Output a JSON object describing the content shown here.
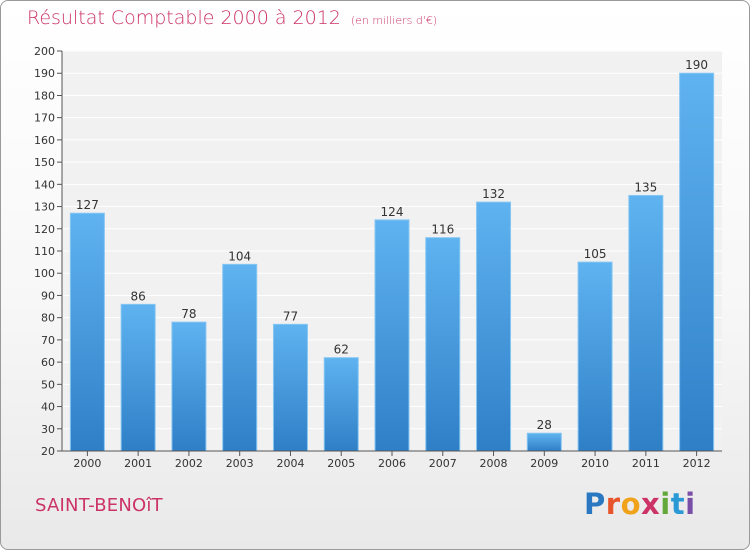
{
  "header": {
    "title": "Résultat Comptable 2000 à 2012",
    "unit": "(en milliers d'€)"
  },
  "footer": {
    "commune": "SAINT-BENOîT",
    "brand_letters": [
      "P",
      "r",
      "o",
      "x",
      "i",
      "t",
      "i"
    ],
    "brand_colors": [
      "#2a78c2",
      "#e8542b",
      "#f0a21a",
      "#cc3366",
      "#62a83a",
      "#2a9ad6",
      "#7a4fa8"
    ]
  },
  "colors": {
    "bar_light": "#5fb3f0",
    "bar_dark": "#2f7fc7",
    "title": "#cc3366"
  },
  "chart_data": {
    "type": "bar",
    "title": "Résultat Comptable 2000 à 2012",
    "subtitle": "(en milliers d'€)",
    "categories": [
      "2000",
      "2001",
      "2002",
      "2003",
      "2004",
      "2005",
      "2006",
      "2007",
      "2008",
      "2009",
      "2010",
      "2011",
      "2012"
    ],
    "values": [
      127,
      86,
      78,
      104,
      77,
      62,
      124,
      116,
      132,
      28,
      105,
      135,
      190
    ],
    "ylim": [
      20,
      200
    ],
    "yticks": [
      20,
      30,
      40,
      50,
      60,
      70,
      80,
      90,
      100,
      110,
      120,
      130,
      140,
      150,
      160,
      170,
      180,
      190,
      200
    ],
    "grid": true
  }
}
